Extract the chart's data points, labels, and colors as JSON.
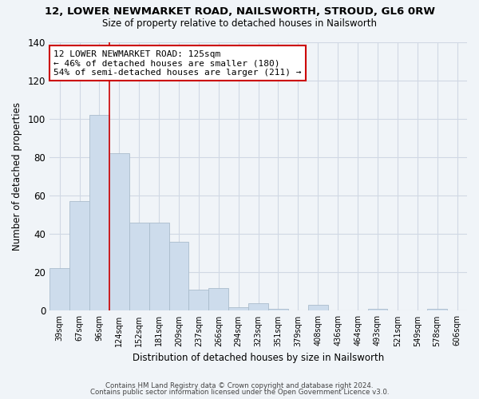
{
  "title": "12, LOWER NEWMARKET ROAD, NAILSWORTH, STROUD, GL6 0RW",
  "subtitle": "Size of property relative to detached houses in Nailsworth",
  "xlabel": "Distribution of detached houses by size in Nailsworth",
  "ylabel": "Number of detached properties",
  "bar_color": "#cddcec",
  "bar_edge_color": "#aabccc",
  "background_color": "#f0f4f8",
  "plot_bg_color": "#f0f4f8",
  "grid_color": "#d0d8e4",
  "categories": [
    "39sqm",
    "67sqm",
    "96sqm",
    "124sqm",
    "152sqm",
    "181sqm",
    "209sqm",
    "237sqm",
    "266sqm",
    "294sqm",
    "323sqm",
    "351sqm",
    "379sqm",
    "408sqm",
    "436sqm",
    "464sqm",
    "493sqm",
    "521sqm",
    "549sqm",
    "578sqm",
    "606sqm"
  ],
  "values": [
    22,
    57,
    102,
    82,
    46,
    46,
    36,
    11,
    12,
    2,
    4,
    1,
    0,
    3,
    0,
    0,
    1,
    0,
    0,
    1,
    0
  ],
  "ylim": [
    0,
    140
  ],
  "yticks": [
    0,
    20,
    40,
    60,
    80,
    100,
    120,
    140
  ],
  "red_line_x": 2.5,
  "marker_color": "#cc0000",
  "annotation_title": "12 LOWER NEWMARKET ROAD: 125sqm",
  "annotation_line1": "← 46% of detached houses are smaller (180)",
  "annotation_line2": "54% of semi-detached houses are larger (211) →",
  "annotation_box_color": "#ffffff",
  "annotation_box_edge": "#cc0000",
  "footer1": "Contains HM Land Registry data © Crown copyright and database right 2024.",
  "footer2": "Contains public sector information licensed under the Open Government Licence v3.0."
}
